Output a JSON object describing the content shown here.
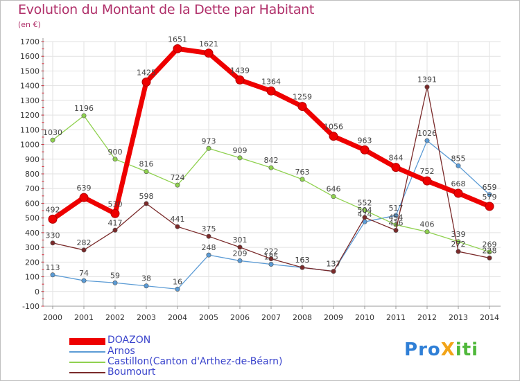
{
  "title": "Evolution du Montant de la Dette par Habitant",
  "unit": "(en €)",
  "logo": {
    "text": "ProXiti",
    "letters": [
      {
        "ch": "P",
        "color": "#2f7fd6"
      },
      {
        "ch": "r",
        "color": "#2f7fd6"
      },
      {
        "ch": "o",
        "color": "#2f7fd6"
      },
      {
        "ch": "X",
        "color": "#f2a418"
      },
      {
        "ch": "i",
        "color": "#4fb83a"
      },
      {
        "ch": "t",
        "color": "#4fb83a"
      },
      {
        "ch": "i",
        "color": "#4fb83a"
      }
    ]
  },
  "chart_data": {
    "type": "line",
    "title": "Evolution du Montant de la Dette par Habitant",
    "ylabel": "(en €)",
    "x": [
      2000,
      2001,
      2002,
      2003,
      2004,
      2005,
      2006,
      2007,
      2008,
      2009,
      2010,
      2011,
      2012,
      2013,
      2014
    ],
    "ylim": [
      -100,
      1700
    ],
    "yticks": [
      -100,
      0,
      100,
      200,
      300,
      400,
      500,
      600,
      700,
      800,
      900,
      1000,
      1100,
      1200,
      1300,
      1400,
      1500,
      1600,
      1700
    ],
    "grid": true,
    "legend_position": "bottom-left",
    "series": [
      {
        "name": "DOAZON",
        "color": "#ee0000",
        "values": [
          492,
          639,
          530,
          1425,
          1651,
          1621,
          1439,
          1364,
          1259,
          1056,
          963,
          844,
          752,
          668,
          579
        ]
      },
      {
        "name": "Arnos",
        "color": "#5b9bd5",
        "values": [
          113,
          74,
          59,
          38,
          16,
          248,
          209,
          185,
          163,
          137,
          474,
          517,
          1026,
          855,
          659
        ]
      },
      {
        "name": "Castillon(Canton d'Arthez-de-Béarn)",
        "color": "#8fd14f",
        "values": [
          1030,
          1196,
          900,
          816,
          724,
          973,
          909,
          842,
          763,
          646,
          552,
          454,
          406,
          339,
          269
        ]
      },
      {
        "name": "Boumourt",
        "color": "#7a2a2a",
        "values": [
          330,
          282,
          417,
          598,
          441,
          375,
          301,
          222,
          163,
          137,
          504,
          416,
          1391,
          272,
          228
        ]
      }
    ]
  }
}
